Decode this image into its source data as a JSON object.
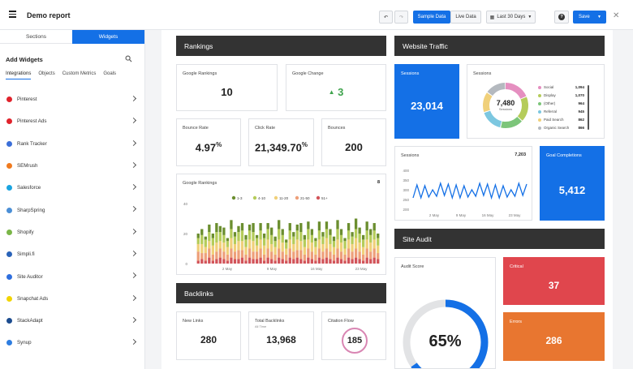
{
  "header": {
    "title": "Demo report",
    "sample_data": "Sample Data",
    "live_data": "Live Data",
    "date_range": "Last 30 Days",
    "save": "Save"
  },
  "sidebar": {
    "tabs": [
      "Sections",
      "Widgets"
    ],
    "heading": "Add Widgets",
    "subtabs": [
      "Integrations",
      "Objects",
      "Custom Metrics",
      "Goals"
    ],
    "items": [
      {
        "label": "Pinterest",
        "color": "#e0232c"
      },
      {
        "label": "Pinterest Ads",
        "color": "#e0232c"
      },
      {
        "label": "Rank Tracker",
        "color": "#3b6fd8"
      },
      {
        "label": "SEMrush",
        "color": "#f07a1e"
      },
      {
        "label": "Salesforce",
        "color": "#1aa4e0"
      },
      {
        "label": "SharpSpring",
        "color": "#4b8fd6"
      },
      {
        "label": "Shopify",
        "color": "#7ab648"
      },
      {
        "label": "Simpli.fi",
        "color": "#2a63b8"
      },
      {
        "label": "Site Auditor",
        "color": "#2f6fde"
      },
      {
        "label": "Snapchat Ads",
        "color": "#f2d400"
      },
      {
        "label": "StackAdapt",
        "color": "#1c4c8f"
      },
      {
        "label": "Synup",
        "color": "#2e7de0"
      }
    ]
  },
  "rankings": {
    "section_title": "Rankings",
    "google_rankings_label": "Google Rankings",
    "google_rankings_value": "10",
    "google_change_label": "Google Change",
    "google_change_value": "3",
    "bounce_rate_label": "Bounce Rate",
    "bounce_rate_value": "4.97",
    "bounce_rate_unit": "%",
    "click_rate_label": "Click Rate",
    "click_rate_value": "21,349.70",
    "click_rate_unit": "%",
    "bounces_label": "Bounces",
    "bounces_value": "200"
  },
  "chart_data": {
    "type": "bar",
    "title": "Google Rankings",
    "corner_value": "8",
    "legend": [
      "1-3",
      "4-10",
      "11-20",
      "21-50",
      "51+"
    ],
    "legend_colors": [
      "#6b8e2f",
      "#b5cc5a",
      "#f0d07a",
      "#eea07a",
      "#d2545a"
    ],
    "ylim": [
      0,
      40
    ],
    "y_ticks": [
      "40",
      "20",
      "0"
    ],
    "x_ticks": [
      "2 May",
      "9 May",
      "16 May",
      "23 May"
    ],
    "stacks": [
      [
        3,
        4,
        5,
        6,
        2
      ],
      [
        4,
        6,
        6,
        4,
        3
      ],
      [
        2,
        5,
        4,
        5,
        2
      ],
      [
        5,
        6,
        5,
        6,
        4
      ],
      [
        3,
        5,
        6,
        4,
        2
      ],
      [
        6,
        7,
        6,
        5,
        3
      ],
      [
        4,
        6,
        5,
        6,
        4
      ],
      [
        5,
        5,
        6,
        5,
        3
      ],
      [
        2,
        4,
        5,
        4,
        2
      ],
      [
        6,
        6,
        7,
        6,
        4
      ],
      [
        3,
        5,
        5,
        5,
        3
      ],
      [
        4,
        6,
        6,
        6,
        3
      ],
      [
        5,
        7,
        6,
        5,
        4
      ],
      [
        3,
        5,
        5,
        4,
        2
      ],
      [
        4,
        6,
        6,
        6,
        4
      ],
      [
        6,
        6,
        7,
        5,
        3
      ],
      [
        2,
        5,
        4,
        5,
        3
      ],
      [
        5,
        6,
        6,
        6,
        4
      ],
      [
        3,
        5,
        6,
        4,
        2
      ],
      [
        4,
        7,
        6,
        6,
        4
      ],
      [
        5,
        6,
        5,
        5,
        3
      ],
      [
        3,
        4,
        5,
        4,
        2
      ],
      [
        6,
        7,
        6,
        6,
        4
      ],
      [
        4,
        5,
        6,
        5,
        3
      ],
      [
        2,
        4,
        4,
        4,
        2
      ],
      [
        5,
        6,
        6,
        6,
        4
      ],
      [
        3,
        5,
        5,
        5,
        3
      ],
      [
        4,
        6,
        7,
        5,
        4
      ],
      [
        6,
        6,
        6,
        6,
        3
      ],
      [
        3,
        5,
        5,
        4,
        2
      ],
      [
        5,
        7,
        6,
        6,
        4
      ],
      [
        4,
        5,
        6,
        5,
        3
      ],
      [
        2,
        4,
        5,
        4,
        2
      ],
      [
        6,
        6,
        6,
        6,
        4
      ],
      [
        3,
        5,
        5,
        5,
        3
      ],
      [
        5,
        6,
        7,
        6,
        4
      ],
      [
        4,
        6,
        5,
        5,
        3
      ],
      [
        3,
        4,
        5,
        4,
        2
      ],
      [
        6,
        7,
        6,
        6,
        4
      ],
      [
        4,
        5,
        6,
        5,
        3
      ],
      [
        2,
        5,
        4,
        4,
        2
      ],
      [
        5,
        6,
        6,
        6,
        4
      ],
      [
        3,
        5,
        5,
        5,
        3
      ],
      [
        7,
        6,
        7,
        6,
        4
      ],
      [
        4,
        6,
        6,
        5,
        3
      ],
      [
        3,
        5,
        5,
        4,
        2
      ],
      [
        6,
        6,
        6,
        6,
        4
      ],
      [
        4,
        5,
        6,
        5,
        3
      ],
      [
        5,
        6,
        6,
        6,
        4
      ],
      [
        3,
        5,
        5,
        4,
        3
      ]
    ]
  },
  "backlinks": {
    "section_title": "Backlinks",
    "new_links_label": "New Links",
    "new_links_value": "280",
    "total_backlinks_label": "Total Backlinks",
    "total_backlinks_sub": "All Time",
    "total_backlinks_value": "13,968",
    "citation_flow_label": "Citation Flow",
    "citation_flow_value": "185"
  },
  "traffic": {
    "section_title": "Website Traffic",
    "sessions_label": "Sessions",
    "sessions_value": "23,014",
    "donut_label": "Sessions",
    "donut_center": "7,480",
    "donut_center_sub": "Sessions",
    "donut_legend": [
      {
        "label": "Social",
        "value": "1,094",
        "color": "#e58fc0"
      },
      {
        "label": "Display",
        "value": "1,070",
        "color": "#b5cc5a"
      },
      {
        "label": "(Other)",
        "value": "964",
        "color": "#7cc57a"
      },
      {
        "label": "Referral",
        "value": "945",
        "color": "#7cc7e0"
      },
      {
        "label": "Paid Search",
        "value": "862",
        "color": "#f0d07a"
      },
      {
        "label": "Organic Search",
        "value": "866",
        "color": "#b4b9bf"
      }
    ],
    "line_label": "Sessions",
    "line_total": "7,203",
    "line_y_ticks": [
      "400",
      "350",
      "300",
      "250",
      "200"
    ],
    "line_x_ticks": [
      "2 May",
      "9 May",
      "16 May",
      "23 May"
    ],
    "goal_label": "Goal Completions",
    "goal_value": "5,412"
  },
  "audit": {
    "section_title": "Site Audit",
    "score_label": "Audit Score",
    "score_value": "65%",
    "score_fraction": 0.65,
    "critical_label": "Critical",
    "critical_value": "37",
    "errors_label": "Errors",
    "errors_value": "286"
  }
}
